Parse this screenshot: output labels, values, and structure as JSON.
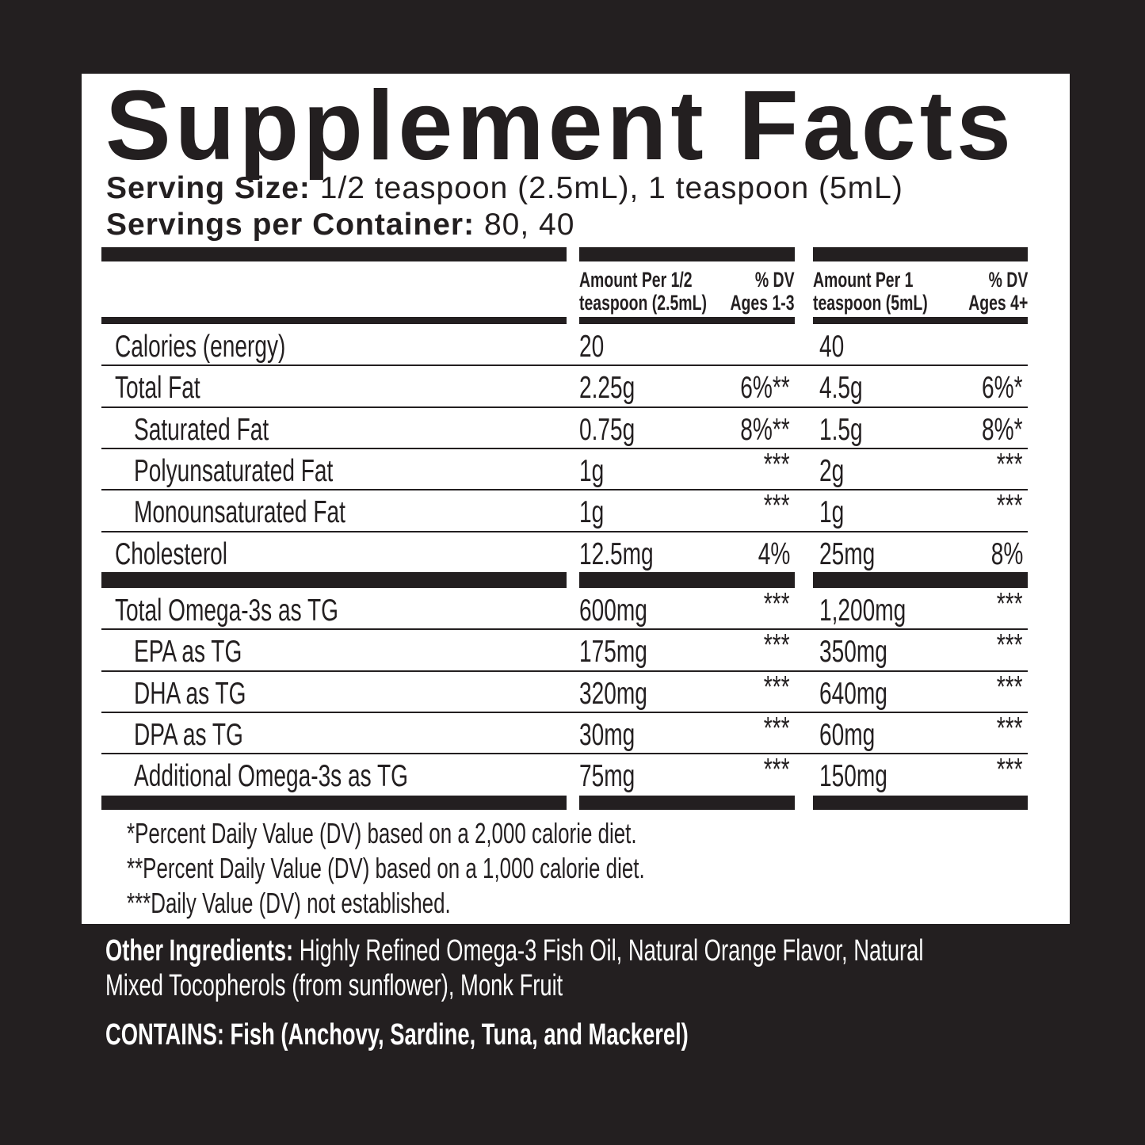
{
  "title": "Supplement Facts",
  "serving_size": {
    "label": "Serving Size:",
    "value": "1/2 teaspoon (2.5mL), 1 teaspoon (5mL)"
  },
  "servings_per_container": {
    "label": "Servings per Container:",
    "value": "80, 40"
  },
  "columns": {
    "a_amount": [
      "Amount Per 1/2",
      "teaspoon (2.5mL)"
    ],
    "a_dv": [
      "% DV",
      "Ages 1-3"
    ],
    "b_amount": [
      "Amount Per 1",
      "teaspoon (5mL)"
    ],
    "b_dv": [
      "% DV",
      "Ages 4+"
    ]
  },
  "rows": [
    {
      "name": "Calories (energy)",
      "indent": false,
      "a": "20",
      "a_dv": "",
      "b": "40",
      "b_dv": ""
    },
    {
      "name": "Total Fat",
      "indent": false,
      "a": "2.25g",
      "a_dv": "6%**",
      "b": "4.5g",
      "b_dv": "6%*"
    },
    {
      "name": "Saturated Fat",
      "indent": true,
      "a": "0.75g",
      "a_dv": "8%**",
      "b": "1.5g",
      "b_dv": "8%*"
    },
    {
      "name": "Polyunsaturated Fat",
      "indent": true,
      "a": "1g",
      "a_dv": "***",
      "b": "2g",
      "b_dv": "***"
    },
    {
      "name": "Monounsaturated Fat",
      "indent": true,
      "a": "1g",
      "a_dv": "***",
      "b": "1g",
      "b_dv": "***"
    },
    {
      "name": "Cholesterol",
      "indent": false,
      "a": "12.5mg",
      "a_dv": "4%",
      "b": "25mg",
      "b_dv": "8%"
    }
  ],
  "omega_rows": [
    {
      "name": "Total Omega-3s as TG",
      "indent": false,
      "a": "600mg",
      "a_dv": "***",
      "b": "1,200mg",
      "b_dv": "***"
    },
    {
      "name": "EPA as TG",
      "indent": true,
      "a": "175mg",
      "a_dv": "***",
      "b": "350mg",
      "b_dv": "***"
    },
    {
      "name": "DHA as TG",
      "indent": true,
      "a": "320mg",
      "a_dv": "***",
      "b": "640mg",
      "b_dv": "***"
    },
    {
      "name": "DPA as TG",
      "indent": true,
      "a": "30mg",
      "a_dv": "***",
      "b": "60mg",
      "b_dv": "***"
    },
    {
      "name": "Additional Omega-3s as TG",
      "indent": true,
      "a": "75mg",
      "a_dv": "***",
      "b": "150mg",
      "b_dv": "***"
    }
  ],
  "footnotes": [
    "*Percent Daily Value (DV) based on a 2,000 calorie diet.",
    "**Percent Daily Value (DV) based on a 1,000 calorie diet.",
    "***Daily Value (DV) not established."
  ],
  "other_ingredients": {
    "label": "Other Ingredients:",
    "line1": "Highly Refined Omega-3 Fish Oil, Natural Orange Flavor, Natural",
    "line2": "Mixed Tocopherols (from sunflower), Monk Fruit"
  },
  "contains": "CONTAINS: Fish (Anchovy, Sardine, Tuna, and Mackerel)",
  "colors": {
    "background": "#231f20",
    "panel": "#ffffff",
    "text": "#231f20"
  }
}
